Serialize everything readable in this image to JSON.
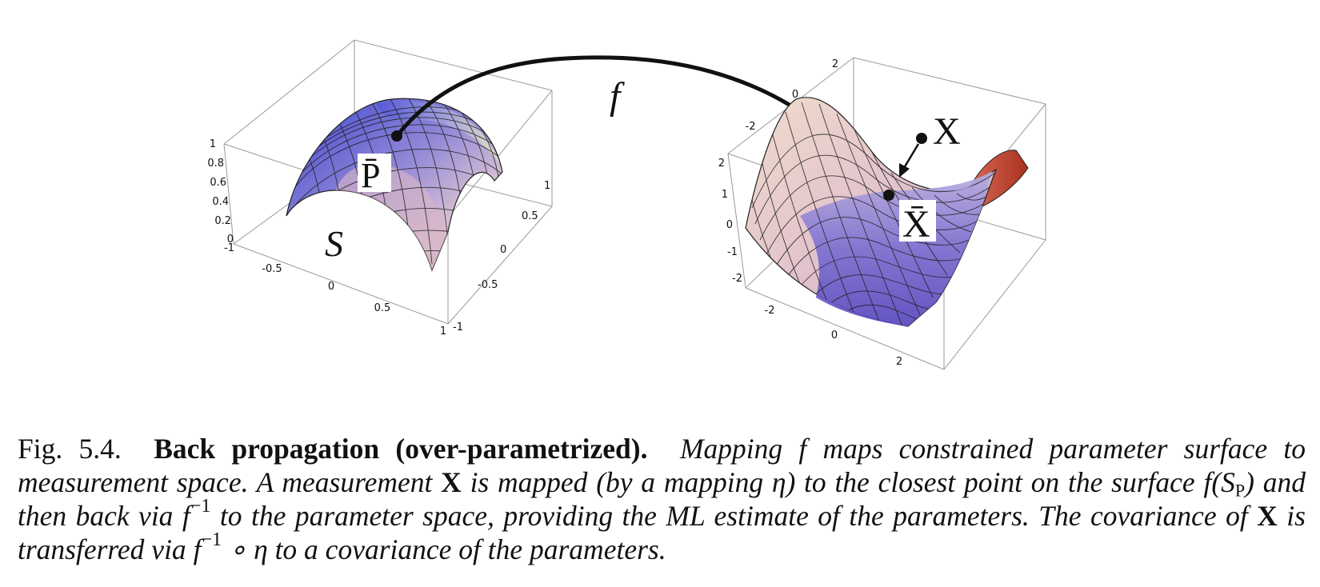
{
  "figure": {
    "left_panel": {
      "surface_label": "S",
      "point_label": "P̄",
      "z_ticks": [
        "1",
        "0.8",
        "0.6",
        "0.4",
        "0.2",
        "0"
      ],
      "x_ticks": [
        "-1",
        "-0.5",
        "0",
        "0.5",
        "1"
      ],
      "y_ticks": [
        "1",
        "0.5",
        "0",
        "-0.5",
        "-1"
      ],
      "colors": {
        "top": "#4a53d8",
        "side_light": "#e6c8d2",
        "highlight": "#eef3c8",
        "mesh": "#222222"
      }
    },
    "mapping_label": "f",
    "right_panel": {
      "measurement_label": "X",
      "closest_point_label": "X̄",
      "left_ticks": [
        "2",
        "1",
        "0",
        "-1",
        "-2"
      ],
      "top_ticks": [
        "2",
        "0",
        "-2"
      ],
      "bottom_ticks": [
        "-2",
        "0",
        "2"
      ],
      "colors": {
        "front": "#6f62c8",
        "back": "#e8c8d0",
        "flap": "#c0452f",
        "mesh": "#222222"
      }
    }
  },
  "caption": {
    "fignum": "Fig. 5.4.",
    "title": "Back propagation (over-parametrized).",
    "s1": "Mapping ",
    "f1": "f",
    "s2": " maps constrained parameter surface to measurement space. A measurement ",
    "x1": "X",
    "s3": " is mapped (by a mapping η) to the closest point on the surface ",
    "f2": "f",
    "s4": "(",
    "sp": "S",
    "sp_sub": "P",
    "s5": ") and then back via ",
    "f3": "f",
    "inv1": "−1",
    "s6": " to the parameter space, providing the ML estimate of the parameters. The covariance of ",
    "x2": "X",
    "s7": " is transferred via ",
    "f4": "f",
    "inv2": "−1",
    "s8": " ∘ η to a covariance of the parameters."
  }
}
